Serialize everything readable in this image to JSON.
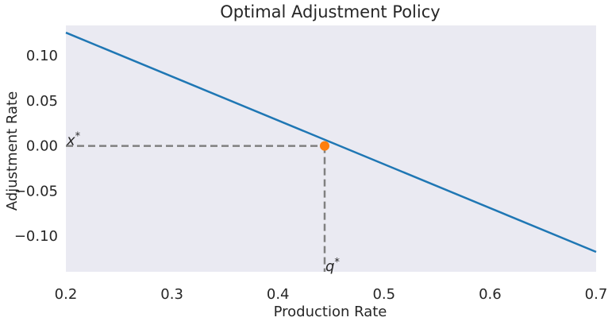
{
  "chart_data": {
    "type": "line",
    "title": "Optimal Adjustment Policy",
    "xlabel": "Production Rate",
    "ylabel": "Adjustment Rate",
    "xlim": [
      0.2,
      0.7
    ],
    "ylim": [
      -0.1395,
      0.1335
    ],
    "xticks": [
      0.2,
      0.3,
      0.4,
      0.5,
      0.6,
      0.7
    ],
    "xtick_labels": [
      "0.2",
      "0.3",
      "0.4",
      "0.5",
      "0.6",
      "0.7"
    ],
    "yticks": [
      0.1,
      0.05,
      0.0,
      -0.05,
      -0.1
    ],
    "ytick_labels": [
      "0.10",
      "0.05",
      "0.00",
      "−0.05",
      "−0.10"
    ],
    "grid": false,
    "background_color": "#eaeaf2",
    "series": [
      {
        "color": "#1f77b4",
        "x": [
          0.2,
          0.7
        ],
        "y": [
          0.1255,
          -0.1175
        ]
      }
    ],
    "point": {
      "x": 0.444,
      "y": 0.0,
      "color": "#ff7f0e"
    },
    "guide_lines": {
      "color": "#808080",
      "horizontal": {
        "y": 0.0,
        "x_from": 0.2,
        "x_to": 0.444
      },
      "vertical": {
        "x": 0.444,
        "y_from": 0.0,
        "y_to": -0.1395
      }
    },
    "annotations": [
      {
        "text": "x",
        "sup": "*",
        "x": 0.2,
        "y": 0.0
      },
      {
        "text": "q",
        "sup": "*",
        "x": 0.444,
        "y": -0.1395
      }
    ]
  }
}
